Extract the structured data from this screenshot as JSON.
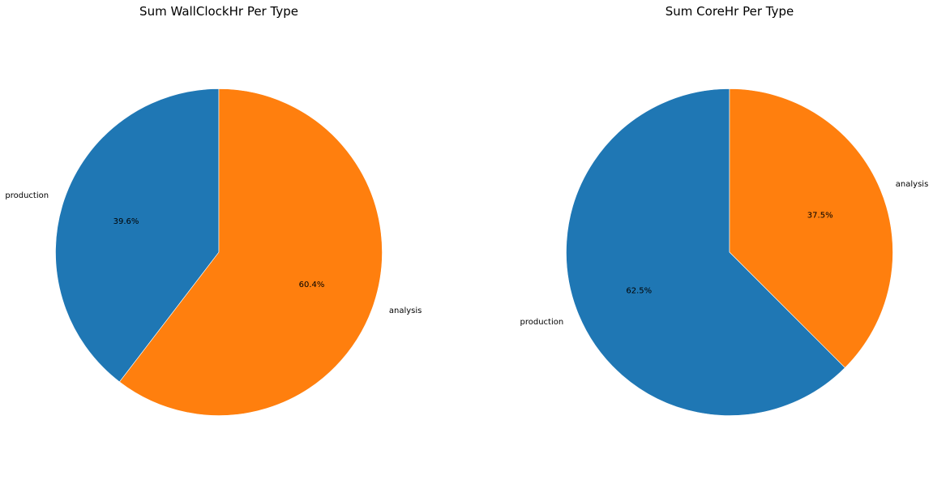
{
  "chart_data": [
    {
      "type": "pie",
      "title": "Sum WallClockHr Per Type",
      "start_angle_deg": 90,
      "direction": "counterclockwise",
      "slices": [
        {
          "label": "production",
          "value": 39.6,
          "pct_text": "39.6%",
          "color": "#1f77b4"
        },
        {
          "label": "analysis",
          "value": 60.4,
          "pct_text": "60.4%",
          "color": "#ff7f0e"
        }
      ]
    },
    {
      "type": "pie",
      "title": "Sum CoreHr Per Type",
      "start_angle_deg": 90,
      "direction": "counterclockwise",
      "slices": [
        {
          "label": "production",
          "value": 62.5,
          "pct_text": "62.5%",
          "color": "#1f77b4"
        },
        {
          "label": "analysis",
          "value": 37.5,
          "pct_text": "37.5%",
          "color": "#ff7f0e"
        }
      ]
    }
  ]
}
